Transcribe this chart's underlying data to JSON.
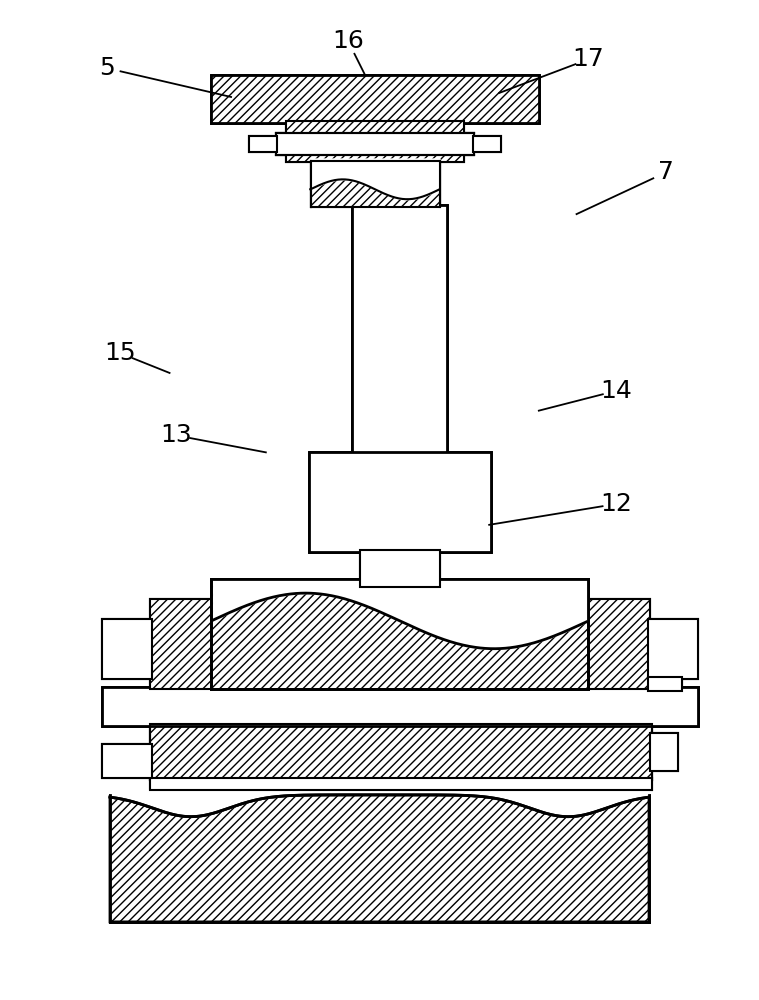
{
  "bg_color": "#ffffff",
  "line_color": "#000000",
  "figsize": [
    7.59,
    10.0
  ],
  "dpi": 100,
  "label_fontsize": 18
}
